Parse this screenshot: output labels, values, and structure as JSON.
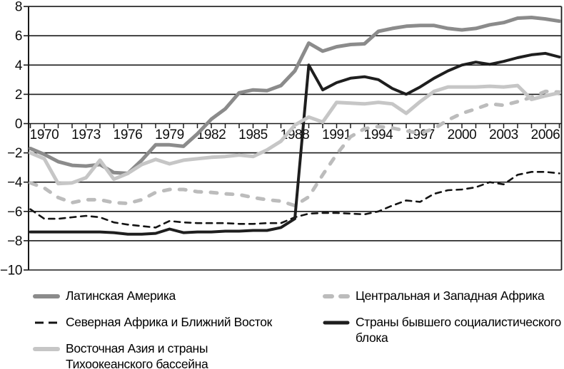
{
  "chart_data": {
    "type": "line",
    "title": "",
    "xlabel": "",
    "ylabel": "",
    "ylim": [
      -10,
      8
    ],
    "xlim": [
      1969,
      2007
    ],
    "grid": "horizontal",
    "legend_position": "below",
    "y_ticks": [
      8,
      6,
      4,
      2,
      0,
      -2,
      -4,
      -6,
      -8,
      -10
    ],
    "y_tick_labels": [
      "8",
      "6",
      "4",
      "2",
      "0",
      "−2",
      "−4",
      "−6",
      "−8",
      "−10"
    ],
    "x_tick_labels": [
      "1970",
      "1973",
      "1976",
      "1979",
      "1982",
      "1985",
      "1988",
      "1991",
      "1994",
      "1997",
      "2000",
      "2003",
      "2006"
    ],
    "x_labeled_years": [
      1970,
      1973,
      1976,
      1979,
      1982,
      1985,
      1988,
      1991,
      1994,
      1997,
      2000,
      2003,
      2006
    ],
    "years": [
      1969,
      1970,
      1971,
      1972,
      1973,
      1974,
      1975,
      1976,
      1977,
      1978,
      1979,
      1980,
      1981,
      1982,
      1983,
      1984,
      1985,
      1986,
      1987,
      1988,
      1989,
      1990,
      1991,
      1992,
      1993,
      1994,
      1995,
      1996,
      1997,
      1998,
      1999,
      2000,
      2001,
      2002,
      2003,
      2004,
      2005,
      2006,
      2007
    ],
    "series": [
      {
        "name": "Латинская Америка",
        "color": "#8b8b8b",
        "style": "solid",
        "width": 5,
        "values": [
          -1.7,
          -2.1,
          -2.6,
          -2.85,
          -2.9,
          -2.8,
          -3.35,
          -3.4,
          -2.5,
          -1.45,
          -1.45,
          -1.55,
          -0.7,
          0.3,
          1.0,
          2.1,
          2.3,
          2.25,
          2.6,
          3.6,
          5.5,
          4.95,
          5.25,
          5.4,
          5.45,
          6.3,
          6.5,
          6.65,
          6.7,
          6.7,
          6.5,
          6.4,
          6.5,
          6.75,
          6.9,
          7.2,
          7.25,
          7.15,
          7.0
        ]
      },
      {
        "name": "Северная Африка и Ближний Восток",
        "color": "#141414",
        "style": "dashed",
        "width": 2.6,
        "values": [
          -5.85,
          -6.5,
          -6.5,
          -6.4,
          -6.3,
          -6.4,
          -6.75,
          -6.9,
          -7.0,
          -7.1,
          -6.65,
          -6.75,
          -6.8,
          -6.8,
          -6.8,
          -6.85,
          -6.85,
          -6.8,
          -6.8,
          -6.4,
          -6.15,
          -6.1,
          -6.1,
          -6.15,
          -6.2,
          -6.0,
          -5.6,
          -5.25,
          -5.35,
          -4.8,
          -4.55,
          -4.5,
          -4.35,
          -4.0,
          -4.15,
          -3.5,
          -3.3,
          -3.3,
          -3.4
        ]
      },
      {
        "name": "Восточная Азия и страны Тихоокеанского бассейна",
        "color": "#c6c6c6",
        "style": "solid",
        "width": 5,
        "values": [
          -2.0,
          -2.4,
          -4.1,
          -4.05,
          -3.7,
          -2.5,
          -3.8,
          -3.4,
          -2.8,
          -2.45,
          -2.75,
          -2.5,
          -2.4,
          -2.3,
          -2.25,
          -2.15,
          -2.25,
          -1.8,
          -1.2,
          -0.1,
          0.45,
          0.1,
          1.45,
          1.4,
          1.35,
          1.45,
          1.35,
          0.7,
          1.5,
          2.2,
          2.5,
          2.5,
          2.5,
          2.55,
          2.5,
          2.6,
          1.65,
          1.9,
          2.1
        ]
      },
      {
        "name": "Центральная и Западная Африка",
        "color": "#bcbcbc",
        "style": "dashed",
        "width": 5,
        "values": [
          -4.05,
          -4.4,
          -5.05,
          -5.4,
          -5.2,
          -5.2,
          -5.4,
          -5.45,
          -5.2,
          -4.7,
          -4.5,
          -4.5,
          -4.65,
          -4.7,
          -4.8,
          -4.85,
          -5.05,
          -5.2,
          -5.3,
          -5.6,
          -5.0,
          -3.5,
          -2.1,
          -0.9,
          -0.35,
          -0.2,
          -0.3,
          -0.5,
          -0.65,
          -0.35,
          0.25,
          0.7,
          1.0,
          1.35,
          1.25,
          1.5,
          1.8,
          2.2,
          2.15
        ]
      },
      {
        "name": "Страны бывшего социалистического блока",
        "color": "#1e1e1e",
        "style": "solid",
        "width": 4,
        "values": [
          -7.4,
          -7.4,
          -7.4,
          -7.4,
          -7.4,
          -7.4,
          -7.45,
          -7.55,
          -7.55,
          -7.5,
          -7.2,
          -7.45,
          -7.4,
          -7.4,
          -7.35,
          -7.35,
          -7.3,
          -7.3,
          -7.1,
          -6.5,
          4.0,
          2.3,
          2.8,
          3.1,
          3.2,
          3.0,
          2.4,
          2.0,
          2.5,
          3.1,
          3.6,
          4.0,
          4.2,
          4.05,
          4.25,
          4.5,
          4.7,
          4.8,
          4.55
        ]
      }
    ],
    "draw_order": [
      3,
      1,
      4,
      0,
      2
    ],
    "axis_color": "#1a1a1a"
  },
  "legend": {
    "left_column": [
      0,
      1,
      2
    ],
    "right_column": [
      3,
      4
    ]
  }
}
